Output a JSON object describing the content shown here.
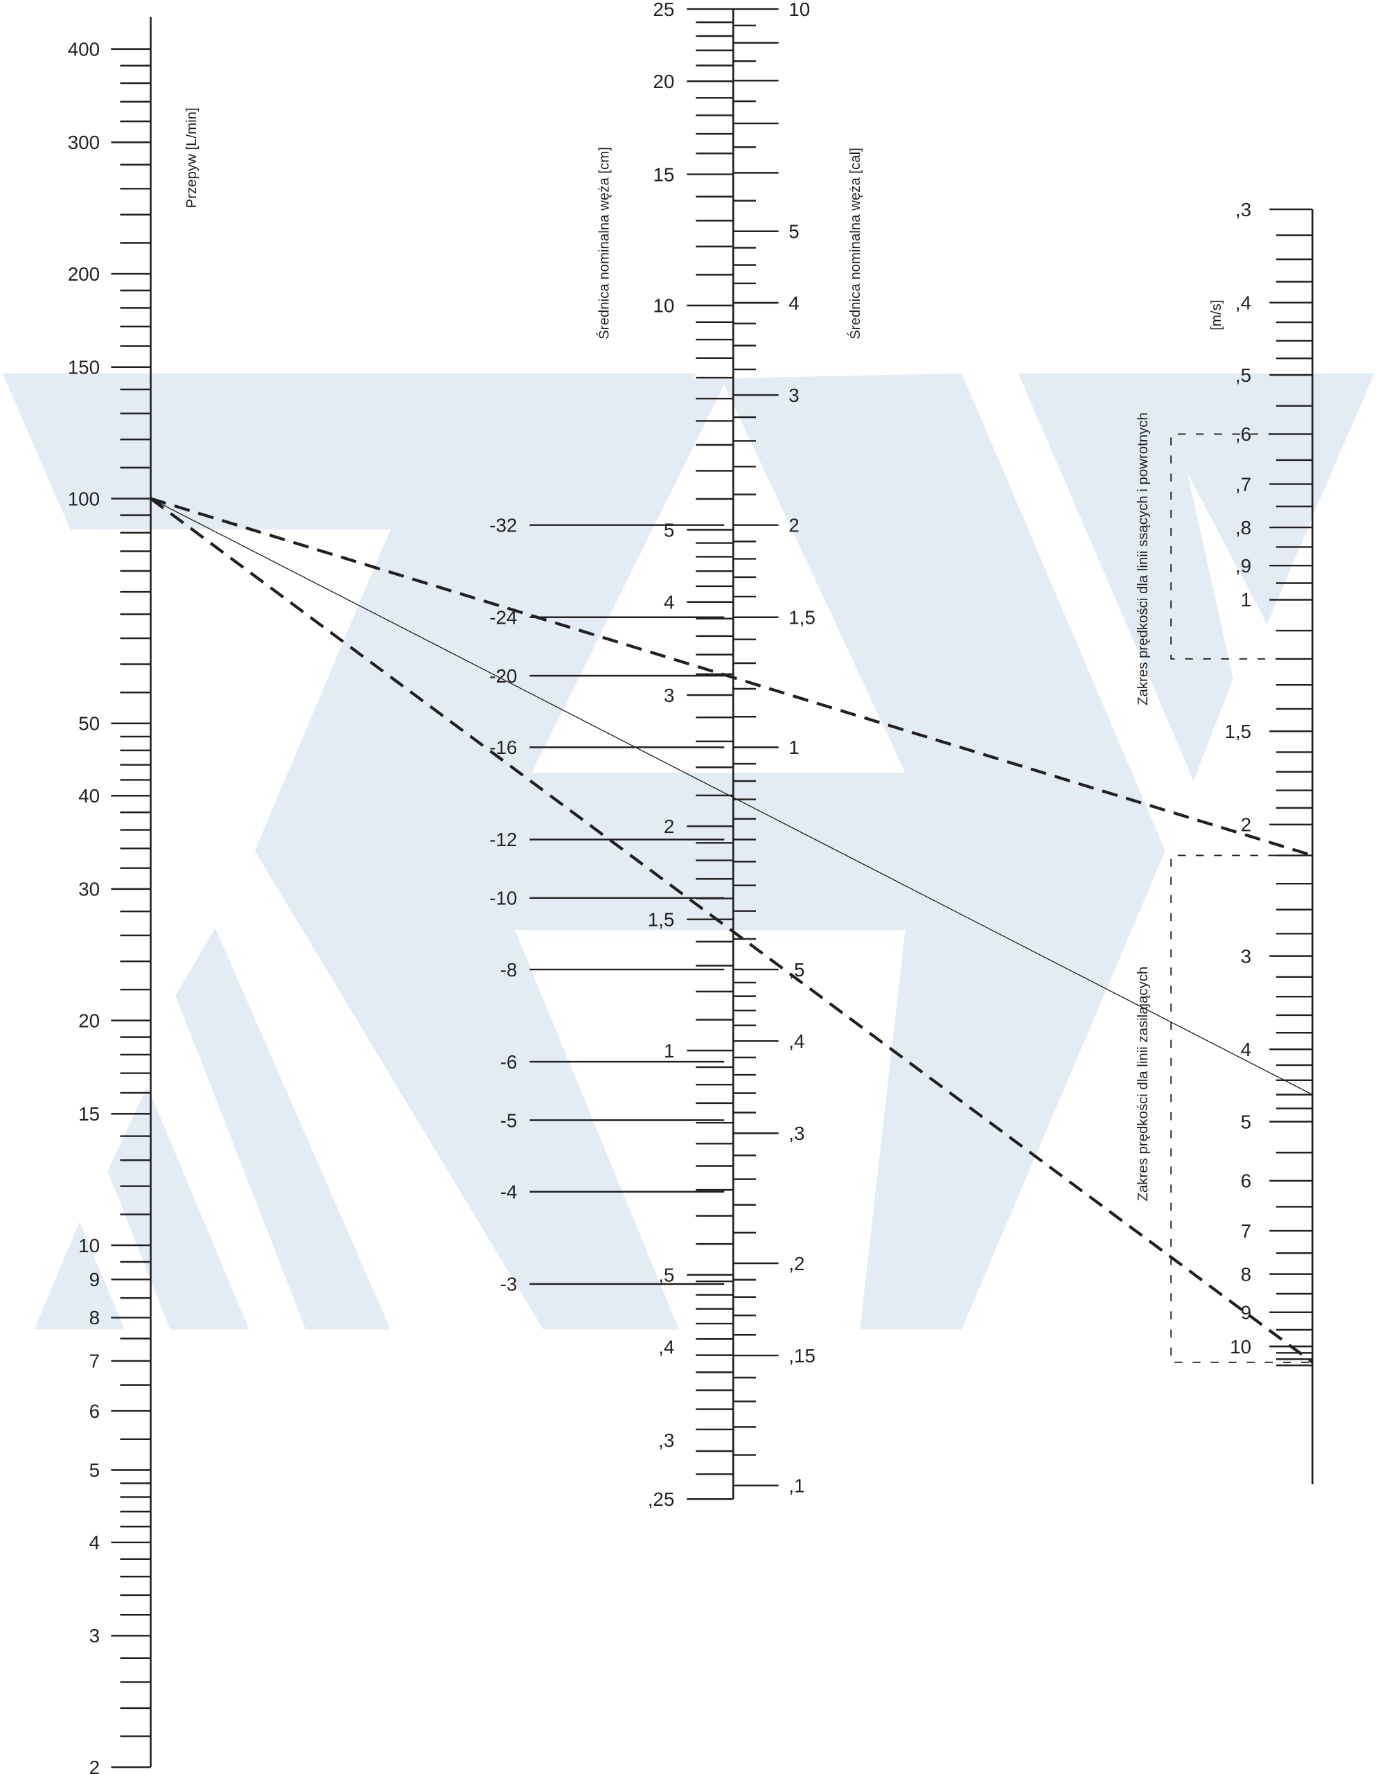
{
  "watermark": {
    "color": "#e3ecf5"
  },
  "flow_axis": {
    "title": "Przepyw [L/min]",
    "scale": "log",
    "range": [
      2,
      400
    ],
    "labels": [
      {
        "value": 400,
        "text": "400"
      },
      {
        "value": 300,
        "text": "300"
      },
      {
        "value": 200,
        "text": "200"
      },
      {
        "value": 150,
        "text": "150"
      },
      {
        "value": 100,
        "text": "100"
      },
      {
        "value": 50,
        "text": "50"
      },
      {
        "value": 40,
        "text": "40"
      },
      {
        "value": 30,
        "text": "30"
      },
      {
        "value": 20,
        "text": "20"
      },
      {
        "value": 15,
        "text": "15"
      },
      {
        "value": 10,
        "text": "10"
      },
      {
        "value": 9,
        "text": "9"
      },
      {
        "value": 8,
        "text": "8"
      },
      {
        "value": 7,
        "text": "7"
      },
      {
        "value": 6,
        "text": "6"
      },
      {
        "value": 5,
        "text": "5"
      },
      {
        "value": 4,
        "text": "4"
      },
      {
        "value": 3,
        "text": "3"
      },
      {
        "value": 2,
        "text": "2"
      }
    ]
  },
  "diameter_cm_axis": {
    "title": "Średnica nominalna węża [cm]",
    "scale": "log",
    "range": [
      0.25,
      25
    ],
    "labels": [
      {
        "value": 25,
        "text": "25"
      },
      {
        "value": 20,
        "text": "20"
      },
      {
        "value": 15,
        "text": "15"
      },
      {
        "value": 10,
        "text": "10"
      },
      {
        "value": 5,
        "text": "5"
      },
      {
        "value": 4,
        "text": "4"
      },
      {
        "value": 3,
        "text": "3"
      },
      {
        "value": 2,
        "text": "2"
      },
      {
        "value": 1.5,
        "text": "1,5"
      },
      {
        "value": 1,
        "text": "1"
      },
      {
        "value": 0.5,
        "text": ",5"
      },
      {
        "value": 0.4,
        "text": ",4"
      },
      {
        "value": 0.3,
        "text": ",3"
      },
      {
        "value": 0.25,
        "text": ",25"
      }
    ]
  },
  "diameter_inch_axis": {
    "title": "Średnica nominalna węża [cal]",
    "scale": "log",
    "range": [
      0.1,
      10
    ],
    "labels": [
      {
        "value": 10,
        "text": "10"
      },
      {
        "value": 5,
        "text": "5"
      },
      {
        "value": 4,
        "text": "4"
      },
      {
        "value": 3,
        "text": "3"
      },
      {
        "value": 2,
        "text": "2"
      },
      {
        "value": 1.5,
        "text": "1,5"
      },
      {
        "value": 1,
        "text": "1"
      },
      {
        "value": 0.5,
        "text": ",5"
      },
      {
        "value": 0.4,
        "text": ",4"
      },
      {
        "value": 0.3,
        "text": ",3"
      },
      {
        "value": 0.2,
        "text": ",2"
      },
      {
        "value": 0.15,
        "text": ",15"
      },
      {
        "value": 0.1,
        "text": ",1"
      }
    ]
  },
  "hose_sizes": [
    {
      "dash": 32,
      "text": "-32"
    },
    {
      "dash": 24,
      "text": "-24"
    },
    {
      "dash": 20,
      "text": "-20"
    },
    {
      "dash": 16,
      "text": "-16"
    },
    {
      "dash": 12,
      "text": "-12"
    },
    {
      "dash": 10,
      "text": "-10"
    },
    {
      "dash": 8,
      "text": "-8"
    },
    {
      "dash": 6,
      "text": "-6"
    },
    {
      "dash": 5,
      "text": "-5"
    },
    {
      "dash": 4,
      "text": "-4"
    },
    {
      "dash": 3,
      "text": "-3"
    }
  ],
  "velocity_axis": {
    "title": "[m/s]",
    "scale": "log",
    "range": [
      0.3,
      10
    ],
    "labels": [
      {
        "value": 0.3,
        "text": ",3"
      },
      {
        "value": 0.4,
        "text": ",4"
      },
      {
        "value": 0.5,
        "text": ",5"
      },
      {
        "value": 0.6,
        "text": ",6"
      },
      {
        "value": 0.7,
        "text": ",7"
      },
      {
        "value": 0.8,
        "text": ",8"
      },
      {
        "value": 0.9,
        "text": ",9"
      },
      {
        "value": 1,
        "text": "1"
      },
      {
        "value": 1.5,
        "text": "1,5"
      },
      {
        "value": 2,
        "text": "2"
      },
      {
        "value": 3,
        "text": "3"
      },
      {
        "value": 4,
        "text": "4"
      },
      {
        "value": 5,
        "text": "5"
      },
      {
        "value": 6,
        "text": "6"
      },
      {
        "value": 7,
        "text": "7"
      },
      {
        "value": 8,
        "text": "8"
      },
      {
        "value": 9,
        "text": "9"
      },
      {
        "value": 10,
        "text": "10"
      }
    ]
  },
  "velocity_ranges": [
    {
      "label": "Zakres prędkości dla linii ssących i powrotnych",
      "from": 0.6,
      "to": 1.2
    },
    {
      "label": "Zakres prędkości dla linii zasilających",
      "from": 2.2,
      "to": 10.5
    }
  ],
  "example_lines": [
    {
      "flow": 100,
      "velocity": 2.2,
      "style": "dashed"
    },
    {
      "flow": 100,
      "velocity": 10.5,
      "style": "dashed"
    },
    {
      "flow": 100,
      "velocity": 4.6,
      "style": "solid"
    }
  ]
}
